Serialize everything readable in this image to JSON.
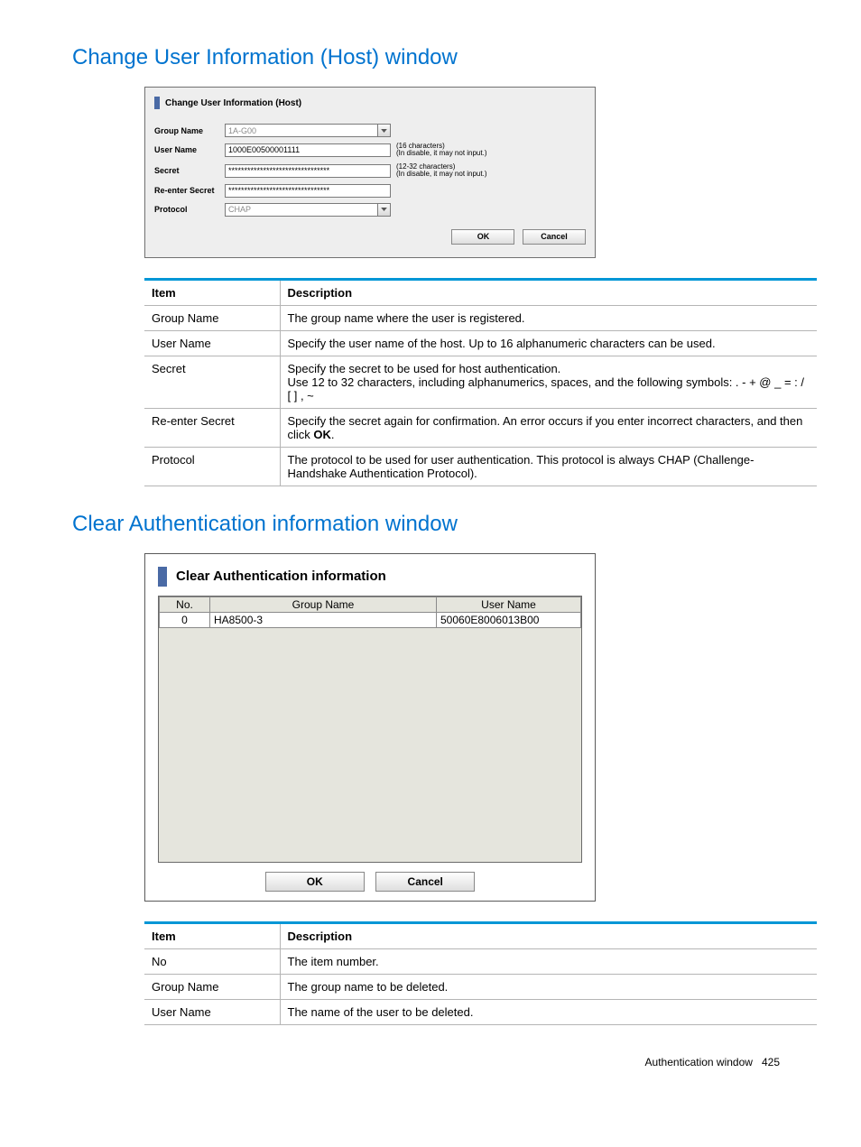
{
  "section1": {
    "title": "Change User Information (Host) window"
  },
  "dialog1": {
    "title": "Change User Information (Host)",
    "labels": {
      "group": "Group Name",
      "user": "User Name",
      "secret": "Secret",
      "resecret": "Re-enter Secret",
      "protocol": "Protocol"
    },
    "values": {
      "group": "1A-G00",
      "user": "1000E00500001111",
      "secret": "********************************",
      "resecret": "********************************",
      "protocol": "CHAP"
    },
    "hints": {
      "user": "(16 characters)\n(In disable, it may not input.)",
      "secret": "(12-32 characters)\n(In disable, it may not input.)"
    },
    "buttons": {
      "ok": "OK",
      "cancel": "Cancel"
    }
  },
  "table1": {
    "headers": {
      "item": "Item",
      "desc": "Description"
    },
    "rows": [
      {
        "item": "Group Name",
        "desc": "The group name where the user is registered."
      },
      {
        "item": "User Name",
        "desc": "Specify the user name of the host. Up to 16 alphanumeric characters can be used."
      },
      {
        "item": "Secret",
        "desc": "Specify the secret to be used for host authentication.\nUse 12 to 32 characters, including alphanumerics, spaces, and the following symbols: . - + @ _ = : / [ ] , ~"
      },
      {
        "item": "Re-enter Secret",
        "desc": "Specify the secret again for confirmation. An error occurs if you enter incorrect characters, and then click <b>OK</b>."
      },
      {
        "item": "Protocol",
        "desc": "The protocol to be used for user authentication. This protocol is always CHAP (Challenge-Handshake Authentication Protocol)."
      }
    ]
  },
  "section2": {
    "title": "Clear Authentication information window"
  },
  "dialog2": {
    "title": "Clear Authentication information",
    "columns": {
      "no": "No.",
      "group": "Group Name",
      "user": "User Name"
    },
    "rows": [
      {
        "no": "0",
        "group": "HA8500-3",
        "user": "50060E8006013B00"
      }
    ],
    "buttons": {
      "ok": "OK",
      "cancel": "Cancel"
    }
  },
  "table2": {
    "headers": {
      "item": "Item",
      "desc": "Description"
    },
    "rows": [
      {
        "item": "No",
        "desc": "The item number."
      },
      {
        "item": "Group Name",
        "desc": "The group name to be deleted."
      },
      {
        "item": "User Name",
        "desc": "The name of the user to be deleted."
      }
    ]
  },
  "footer": {
    "text": "Authentication window",
    "page": "425"
  }
}
